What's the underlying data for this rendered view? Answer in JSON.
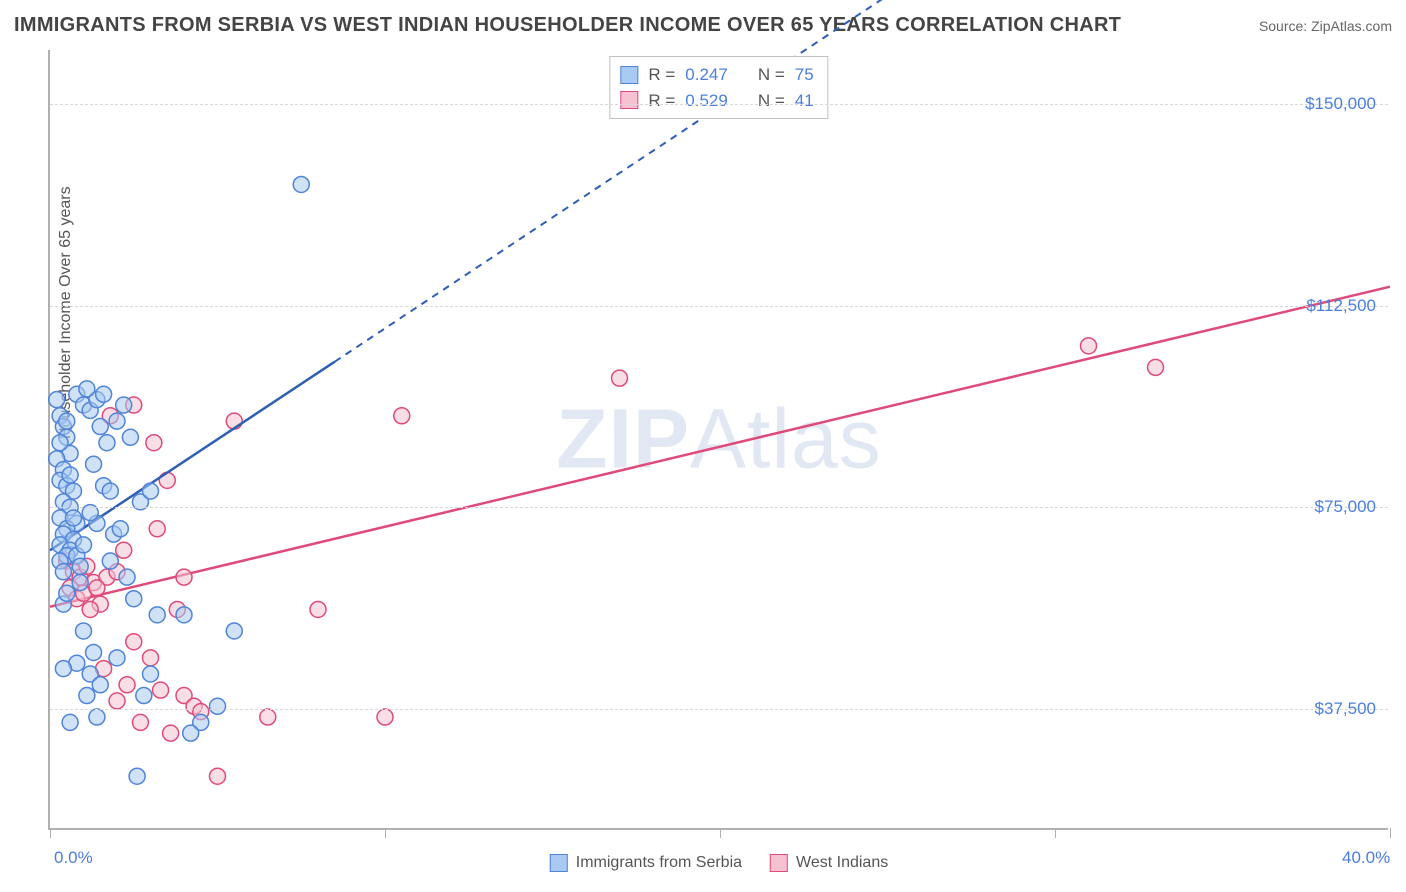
{
  "title": "IMMIGRANTS FROM SERBIA VS WEST INDIAN HOUSEHOLDER INCOME OVER 65 YEARS CORRELATION CHART",
  "source_label": "Source: ",
  "source_name": "ZipAtlas.com",
  "ylabel": "Householder Income Over 65 years",
  "watermark_a": "ZIP",
  "watermark_b": "Atlas",
  "chart": {
    "type": "scatter",
    "xlim": [
      0,
      40
    ],
    "ylim": [
      15000,
      160000
    ],
    "x_ticks": [
      0,
      10,
      20,
      30,
      40
    ],
    "x_tick_labels": {
      "0": "0.0%",
      "40": "40.0%"
    },
    "y_gridlines": [
      37500,
      75000,
      112500,
      150000
    ],
    "y_labels": [
      "$37,500",
      "$75,000",
      "$112,500",
      "$150,000"
    ],
    "background_color": "#ffffff",
    "grid_color": "#d8d8d8",
    "axis_color": "#b0b0b0",
    "label_color": "#4a7fe0"
  },
  "series": [
    {
      "name": "Immigrants from Serbia",
      "fill": "#a9caf2",
      "stroke": "#4f84d8",
      "line_color": "#2d5fb4",
      "marker_radius": 8,
      "fill_opacity": 0.55,
      "r_label": "R =",
      "r_value": "0.247",
      "n_label": "N =",
      "n_value": "75",
      "trend": {
        "x1": 0,
        "y1": 67000,
        "x2": 40,
        "y2": 232000,
        "solid_until_x": 8.5
      },
      "points": [
        [
          0.2,
          95000
        ],
        [
          0.3,
          92000
        ],
        [
          0.4,
          90000
        ],
        [
          0.5,
          88000
        ],
        [
          0.6,
          85000
        ],
        [
          0.2,
          84000
        ],
        [
          0.4,
          82000
        ],
        [
          0.8,
          96000
        ],
        [
          0.3,
          80000
        ],
        [
          0.5,
          79000
        ],
        [
          0.7,
          78000
        ],
        [
          0.4,
          76000
        ],
        [
          0.6,
          75000
        ],
        [
          0.3,
          73000
        ],
        [
          0.8,
          72000
        ],
        [
          0.5,
          71000
        ],
        [
          0.4,
          70000
        ],
        [
          0.7,
          69000
        ],
        [
          0.3,
          68000
        ],
        [
          0.6,
          67000
        ],
        [
          0.5,
          66000
        ],
        [
          0.8,
          66000
        ],
        [
          0.3,
          65000
        ],
        [
          0.9,
          64000
        ],
        [
          0.4,
          63000
        ],
        [
          1.0,
          94000
        ],
        [
          1.2,
          93000
        ],
        [
          1.4,
          95000
        ],
        [
          1.5,
          90000
        ],
        [
          1.7,
          87000
        ],
        [
          1.3,
          83000
        ],
        [
          1.6,
          79000
        ],
        [
          1.8,
          78000
        ],
        [
          1.4,
          72000
        ],
        [
          1.9,
          70000
        ],
        [
          2.0,
          91000
        ],
        [
          2.2,
          94000
        ],
        [
          2.4,
          88000
        ],
        [
          2.3,
          62000
        ],
        [
          2.5,
          58000
        ],
        [
          2.7,
          76000
        ],
        [
          3.0,
          78000
        ],
        [
          3.2,
          55000
        ],
        [
          3.0,
          44000
        ],
        [
          1.0,
          52000
        ],
        [
          1.3,
          48000
        ],
        [
          1.2,
          44000
        ],
        [
          1.5,
          42000
        ],
        [
          0.8,
          46000
        ],
        [
          1.1,
          40000
        ],
        [
          2.0,
          47000
        ],
        [
          0.6,
          35000
        ],
        [
          1.4,
          36000
        ],
        [
          2.6,
          25000
        ],
        [
          4.0,
          55000
        ],
        [
          4.5,
          35000
        ],
        [
          4.2,
          33000
        ],
        [
          5.0,
          38000
        ],
        [
          5.5,
          52000
        ],
        [
          7.5,
          135000
        ],
        [
          1.1,
          97000
        ],
        [
          1.6,
          96000
        ],
        [
          2.1,
          71000
        ],
        [
          0.9,
          61000
        ],
        [
          0.4,
          57000
        ],
        [
          0.5,
          59000
        ],
        [
          0.3,
          87000
        ],
        [
          0.5,
          91000
        ],
        [
          0.7,
          73000
        ],
        [
          0.6,
          81000
        ],
        [
          1.0,
          68000
        ],
        [
          1.2,
          74000
        ],
        [
          1.8,
          65000
        ],
        [
          2.8,
          40000
        ],
        [
          0.4,
          45000
        ]
      ]
    },
    {
      "name": "West Indians",
      "fill": "#f6c2d1",
      "stroke": "#e04a7a",
      "line_color": "#e04a7a",
      "marker_radius": 8,
      "fill_opacity": 0.55,
      "r_label": "R =",
      "r_value": "0.529",
      "n_label": "N =",
      "n_value": "41",
      "trend": {
        "x1": 0,
        "y1": 56500,
        "x2": 40,
        "y2": 116000,
        "solid_until_x": 40
      },
      "points": [
        [
          0.5,
          65000
        ],
        [
          0.7,
          63000
        ],
        [
          0.9,
          62000
        ],
        [
          1.1,
          64000
        ],
        [
          0.6,
          60000
        ],
        [
          0.8,
          58000
        ],
        [
          1.3,
          61000
        ],
        [
          1.0,
          59000
        ],
        [
          1.5,
          57000
        ],
        [
          1.2,
          56000
        ],
        [
          1.7,
          62000
        ],
        [
          2.0,
          63000
        ],
        [
          1.4,
          60000
        ],
        [
          1.8,
          92000
        ],
        [
          2.2,
          67000
        ],
        [
          2.5,
          94000
        ],
        [
          3.1,
          87000
        ],
        [
          3.2,
          71000
        ],
        [
          3.5,
          80000
        ],
        [
          4.0,
          62000
        ],
        [
          3.8,
          56000
        ],
        [
          2.5,
          50000
        ],
        [
          3.0,
          47000
        ],
        [
          3.3,
          41000
        ],
        [
          4.0,
          40000
        ],
        [
          4.3,
          38000
        ],
        [
          4.5,
          37000
        ],
        [
          2.0,
          39000
        ],
        [
          2.3,
          42000
        ],
        [
          2.7,
          35000
        ],
        [
          5.0,
          25000
        ],
        [
          5.5,
          91000
        ],
        [
          6.5,
          36000
        ],
        [
          8.0,
          56000
        ],
        [
          10.5,
          92000
        ],
        [
          10.0,
          36000
        ],
        [
          17.0,
          99000
        ],
        [
          31.0,
          105000
        ],
        [
          33.0,
          101000
        ],
        [
          3.6,
          33000
        ],
        [
          1.6,
          45000
        ]
      ]
    }
  ]
}
